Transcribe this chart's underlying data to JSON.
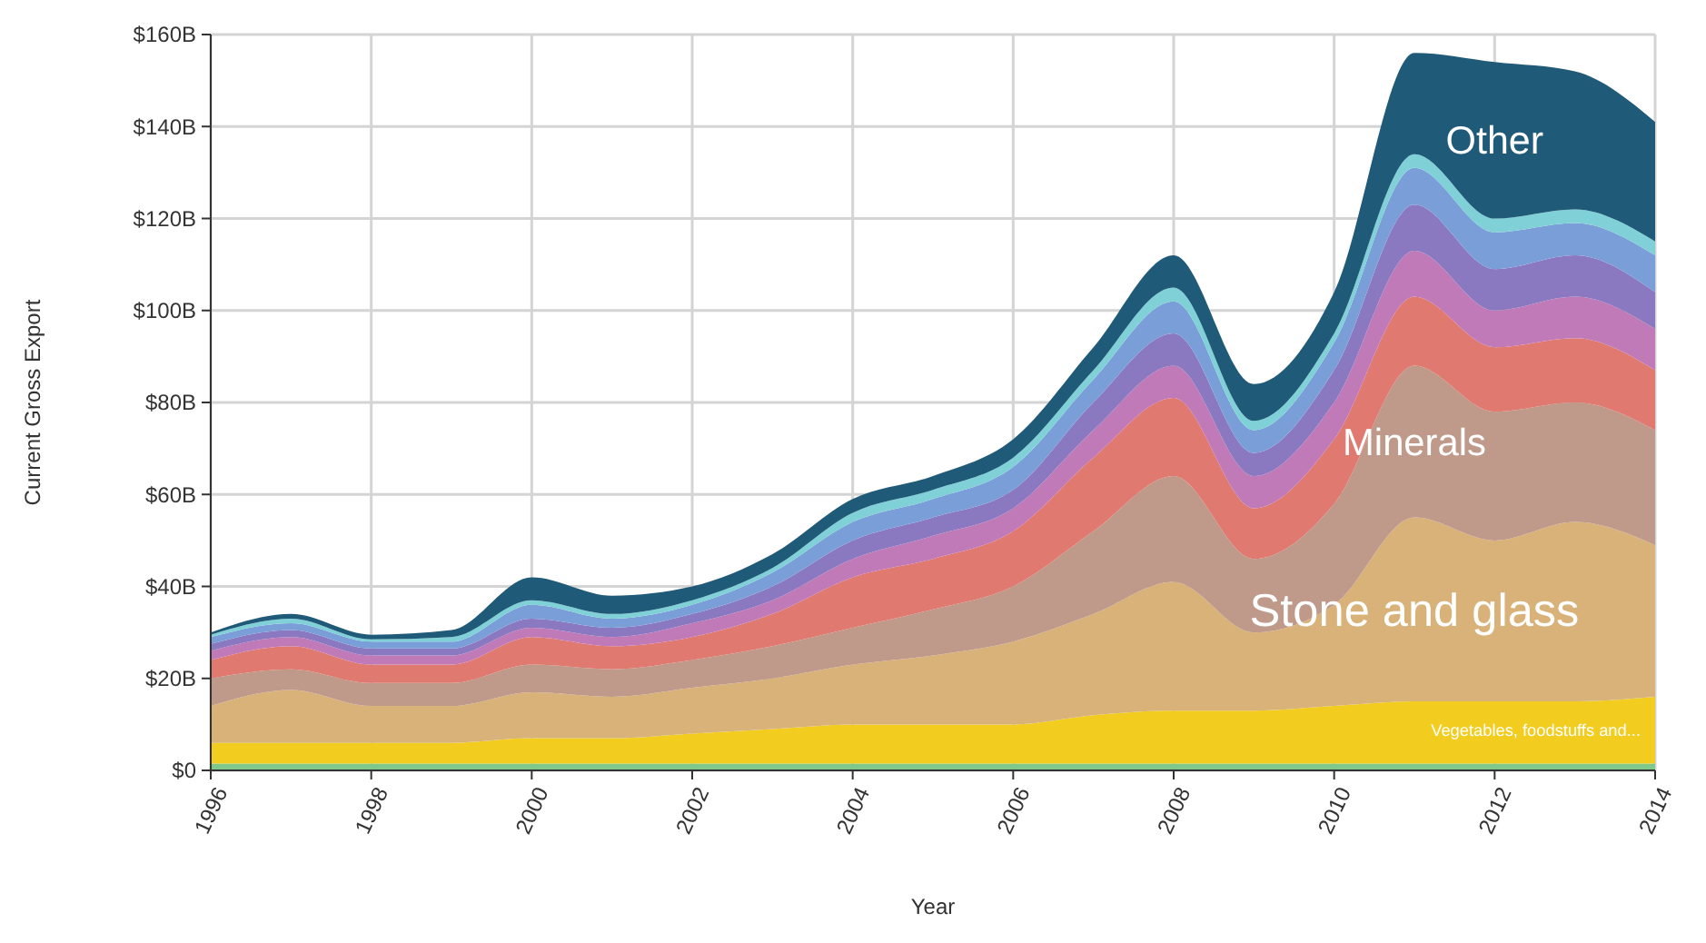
{
  "chart_data": {
    "type": "area",
    "stacked": true,
    "xlabel": "Year",
    "ylabel": "Current Gross Export",
    "x": [
      1996,
      1997,
      1998,
      1999,
      2000,
      2001,
      2002,
      2003,
      2004,
      2005,
      2006,
      2007,
      2008,
      2009,
      2010,
      2011,
      2012,
      2013,
      2014
    ],
    "xlim": [
      1996,
      2014
    ],
    "xticks": [
      1996,
      1998,
      2000,
      2002,
      2004,
      2006,
      2008,
      2010,
      2012,
      2014
    ],
    "ylim": [
      0,
      160
    ],
    "yticks": [
      {
        "value": 0,
        "label": "$0"
      },
      {
        "value": 20,
        "label": "$20B"
      },
      {
        "value": 40,
        "label": "$40B"
      },
      {
        "value": 60,
        "label": "$60B"
      },
      {
        "value": 80,
        "label": "$80B"
      },
      {
        "value": 100,
        "label": "$100B"
      },
      {
        "value": 120,
        "label": "$120B"
      },
      {
        "value": 140,
        "label": "$140B"
      },
      {
        "value": 160,
        "label": "$160B"
      }
    ],
    "grid": true,
    "series": [
      {
        "color": "#7dc88a",
        "values": [
          1.5,
          1.5,
          1.5,
          1.5,
          1.5,
          1.5,
          1.5,
          1.5,
          1.5,
          1.5,
          1.5,
          1.5,
          1.5,
          1.5,
          1.5,
          1.5,
          1.5,
          1.5,
          1.5
        ]
      },
      {
        "name": "Vegetables, foodstuffs and...",
        "color": "#f2cd1f",
        "values": [
          4.5,
          4.5,
          4.5,
          4.5,
          5.5,
          5.5,
          6.5,
          7.5,
          8.5,
          8.5,
          8.5,
          10.5,
          11.5,
          11.5,
          12.5,
          13.5,
          13.5,
          13.5,
          14.5
        ]
      },
      {
        "name": "Stone and glass",
        "color": "#d9b27a",
        "values": [
          8,
          11.5,
          8,
          8,
          10,
          9,
          10,
          11,
          13,
          15,
          18,
          22,
          28,
          17,
          22,
          40,
          35,
          39,
          33
        ]
      },
      {
        "name": "Minerals",
        "color": "#bf998a",
        "values": [
          6,
          4.5,
          5,
          5,
          6,
          6,
          6,
          7,
          8,
          10,
          12,
          18,
          23,
          16,
          22,
          33,
          28,
          26,
          25
        ]
      },
      {
        "color": "#e07a70",
        "values": [
          4,
          5,
          4,
          4,
          6,
          5,
          5,
          7,
          11,
          11,
          12,
          16,
          17,
          11,
          14,
          15,
          14,
          14,
          13
        ]
      },
      {
        "color": "#c07ab8",
        "values": [
          2,
          2,
          2,
          2,
          2,
          2,
          3,
          3,
          4,
          5,
          5,
          6,
          7,
          7,
          8,
          10,
          8,
          9,
          9
        ]
      },
      {
        "color": "#8a78c0",
        "values": [
          1.5,
          1.5,
          1.5,
          1.5,
          2,
          2,
          2,
          3,
          4,
          4,
          4,
          6,
          7,
          5,
          7,
          10,
          9,
          9,
          8
        ]
      },
      {
        "color": "#7a9fd8",
        "values": [
          1.5,
          1.5,
          1.5,
          1.5,
          3,
          2,
          2,
          3,
          4,
          4,
          5,
          5,
          7,
          5,
          6,
          8,
          8,
          7,
          8
        ]
      },
      {
        "color": "#80d0d8",
        "values": [
          0.5,
          1,
          0.5,
          1,
          1,
          1,
          1,
          1,
          2,
          2,
          2,
          2,
          3,
          2,
          2,
          3,
          3,
          3,
          3
        ]
      },
      {
        "name": "Other",
        "color": "#1f5a78",
        "values": [
          0.5,
          1,
          1,
          1.5,
          5,
          4,
          3,
          3,
          3,
          3,
          4,
          5,
          7,
          8,
          9,
          22,
          34,
          30,
          26
        ]
      }
    ]
  }
}
